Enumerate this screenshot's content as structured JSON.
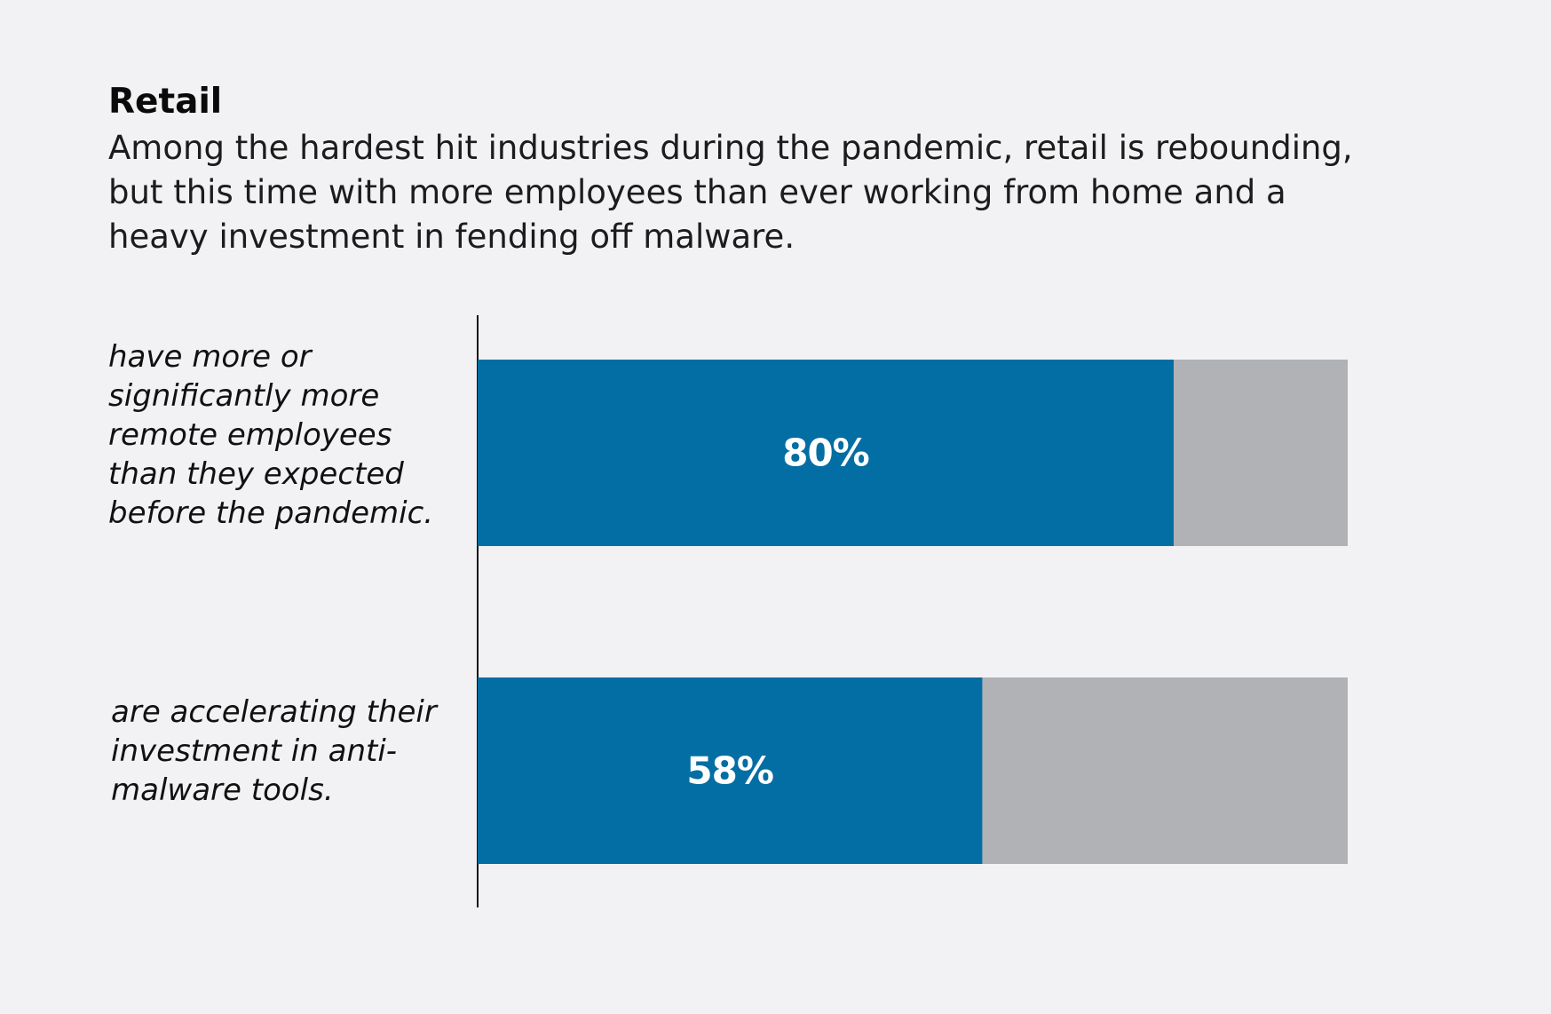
{
  "title": "Retail",
  "subtitle": "Among the hardest hit industries during the pandemic, retail is rebounding, but this time with more employees than ever working from home and a heavy investment in fending off malware.",
  "colors": {
    "background": "#f2f2f4",
    "bar_fill": "#036ea3",
    "bar_remainder": "#b1b2b5",
    "axis": "#111111",
    "value_text": "#ffffff"
  },
  "chart_data": {
    "type": "bar",
    "orientation": "horizontal",
    "stacked": true,
    "categories": [
      "have more or significantly more remote employees than they expected before the pandemic.",
      "are accelerating their investment in anti-malware tools."
    ],
    "values": [
      80,
      58
    ],
    "value_labels": [
      "80%",
      "58%"
    ],
    "xlim": [
      0,
      100
    ],
    "unit": "%",
    "grid": false,
    "legend": "none"
  }
}
